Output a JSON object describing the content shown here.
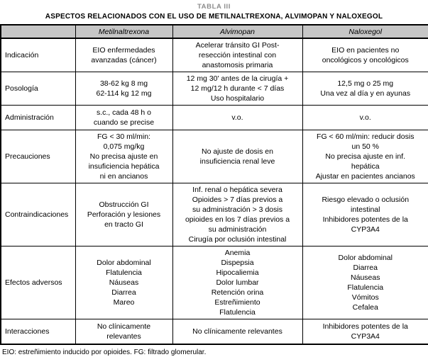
{
  "title": "TABLA III",
  "subtitle": "ASPECTOS RELACIONADOS CON EL USO DE METILNALTREXONA, ALVIMOPAN Y NALOXEGOL",
  "colors": {
    "header_bg": "#c6c6c6",
    "border": "#000000",
    "title_gray": "#8c8c8c"
  },
  "table": {
    "column_headers": [
      "",
      "Metilnaltrexona",
      "Alvimopan",
      "Naloxegol"
    ],
    "rows": [
      {
        "label": "Indicación",
        "cells": [
          "EIO enfermedades\navanzadas (cáncer)",
          "Acelerar tránsito GI Post-\nresección intestinal con\nanastomosis primaria",
          "EIO en pacientes no\noncológicos y oncológicos"
        ]
      },
      {
        "label": "Posología",
        "cells": [
          "38-62 kg 8 mg\n62-114 kg 12 mg",
          "12 mg 30' antes de la cirugía +\n12 mg/12 h durante < 7 días\nUso hospitalario",
          "12,5 mg o 25 mg\nUna vez al día y en ayunas"
        ]
      },
      {
        "label": "Administración",
        "cells": [
          "s.c., cada 48 h o\ncuando se precise",
          "v.o.",
          "v.o."
        ]
      },
      {
        "label": "Precauciones",
        "cells": [
          "FG < 30 ml/min:\n0,075 mg/kg\nNo precisa ajuste en\ninsuficiencia hepática\nni en ancianos",
          "No ajuste de dosis en\ninsuficiencia renal leve",
          "FG < 60 ml/min: reducir dosis\nun 50 %\nNo precisa ajuste en inf.\nhepática\nAjustar en pacientes ancianos"
        ]
      },
      {
        "label": "Contraindicaciones",
        "cells": [
          "Obstrucción GI\nPerforación y lesiones\nen tracto GI",
          "Inf. renal o hepática severa\nOpioides > 7 días previos a\nsu administración > 3 dosis\nopioides en los 7 días previos a\nsu administración\nCirugía por oclusión intestinal",
          "Riesgo elevado o oclusión\nintestinal\nInhibidores potentes de la\nCYP3A4"
        ]
      },
      {
        "label": "Efectos adversos",
        "cells": [
          "Dolor abdominal\nFlatulencia\nNáuseas\nDiarrea\nMareo",
          "Anemia\nDispepsia\nHipocaliemia\nDolor lumbar\nRetención orina\nEstreñimiento\nFlatulencia",
          "Dolor abdominal\nDiarrea\nNáuseas\nFlatulencia\nVómitos\nCefalea"
        ]
      },
      {
        "label": "Interacciones",
        "cells": [
          "No clínicamente\nrelevantes",
          "No clínicamente relevantes",
          "Inhibidores potentes de la\nCYP3A4"
        ]
      }
    ]
  },
  "footnote": "EIO: estreñimiento inducido por opioides. FG: filtrado glomerular."
}
